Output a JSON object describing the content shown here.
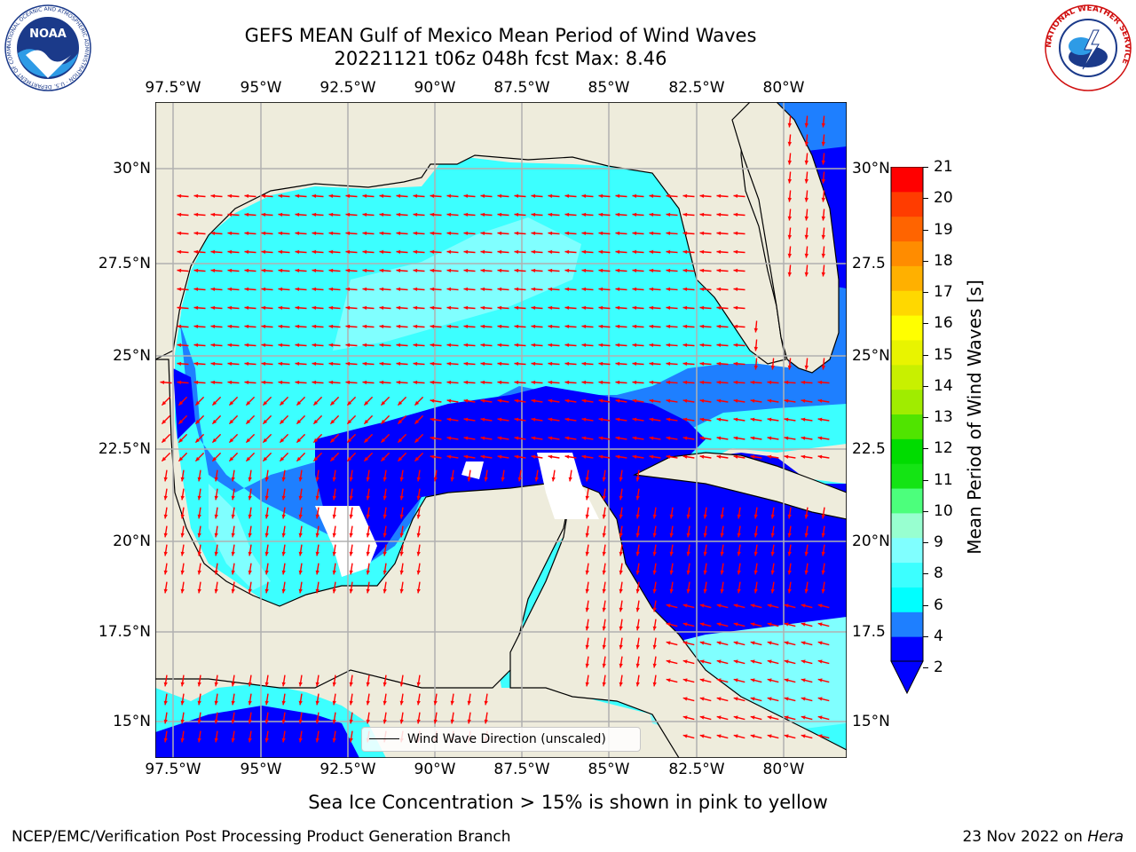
{
  "header": {
    "title_line1": "GEFS MEAN Gulf of Mexico Mean Period of Wind Waves",
    "title_line2": "20221121 t06z 048h fcst   Max: 8.46"
  },
  "logos": {
    "left": {
      "name": "noaa-logo",
      "text": "NOAA",
      "ring_text": "NATIONAL OCEANIC AND ATMOSPHERIC ADMINISTRATION · U.S. DEPARTMENT OF COMMERCE"
    },
    "right": {
      "name": "nws-logo",
      "ring_text": "NATIONAL WEATHER SERVICE"
    }
  },
  "map": {
    "lon_ticks": [
      "97.5°W",
      "95°W",
      "92.5°W",
      "90°W",
      "87.5°W",
      "85°W",
      "82.5°W",
      "80°W"
    ],
    "lat_ticks_left": [
      "30°N",
      "27.5°N",
      "25°N",
      "22.5°N",
      "20°N",
      "17.5°N",
      "15°N"
    ],
    "lat_ticks_right": [
      "30°N",
      "27.5",
      "25°N",
      "22.5",
      "20°N",
      "17.5",
      "15°N"
    ],
    "extent": {
      "lon_min": -98,
      "lon_max": -78.2,
      "lat_min": 14,
      "lat_max": 31.8
    },
    "legend_label": "Wind Wave Direction (unscaled)",
    "colors": {
      "land": "#eeecdc",
      "coast": "#000000",
      "grid": "#b0b0b0",
      "arrow": "#ff0000"
    }
  },
  "colorbar": {
    "label": "Mean Period of Wind Waves [s]",
    "ticks": [
      "21",
      "20",
      "19",
      "18",
      "17",
      "16",
      "15",
      "14",
      "13",
      "12",
      "11",
      "10",
      "9",
      "8",
      "6",
      "4",
      "2"
    ],
    "colors": [
      "#0000ff",
      "#1e7fff",
      "#00ffff",
      "#3cffff",
      "#80ffff",
      "#98ffd0",
      "#4cff7c",
      "#14e414",
      "#00dc00",
      "#50e400",
      "#a0ec00",
      "#c8f000",
      "#e8f400",
      "#ffff00",
      "#ffd800",
      "#ffb000",
      "#ff8c00",
      "#ff6400",
      "#ff3c00",
      "#ff0000"
    ]
  },
  "note": "Sea Ice Concentration > 15% is shown in pink to yellow",
  "footer": {
    "left": "NCEP/EMC/Verification Post Processing Product Generation Branch",
    "right_date": "23 Nov 2022 on ",
    "right_machine": "Hera"
  }
}
